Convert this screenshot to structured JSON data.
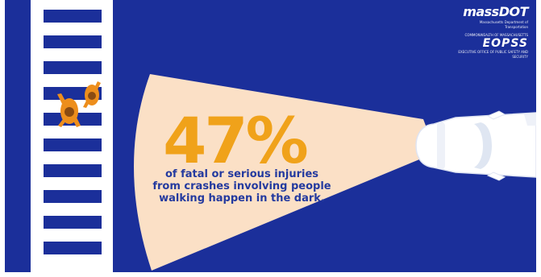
{
  "brand": {
    "primary": "massDOT",
    "primary_sub": "Massachusetts Department of Transportation",
    "secondary_top": "COMMONWEALTH OF MASSACHUSETTS",
    "secondary": "EOPSS",
    "secondary_sub": "EXECUTIVE OFFICE OF PUBLIC SAFETY AND SECURITY"
  },
  "statistic": {
    "value": "47%"
  },
  "caption": {
    "line1": "of fatal or serious injuries",
    "line2": "from crashes involving people",
    "line3": "walking happen in the dark."
  },
  "icons": {
    "pedestrians": "walking-people-icon",
    "car": "car-icon",
    "headlight": "headlight-beam-icon",
    "crosswalk": "crosswalk-icon"
  },
  "colors": {
    "background": "#1b2f9a",
    "beam": "#fbe0c6",
    "highlight": "#f0a21a",
    "caption_text": "#243a9f",
    "white": "#ffffff"
  }
}
